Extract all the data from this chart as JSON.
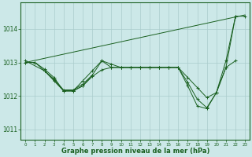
{
  "title": "Graphe pression niveau de la mer (hPa)",
  "background_color": "#cce8e8",
  "grid_color": "#aacccc",
  "line_color": "#1a6020",
  "xlim": [
    -0.5,
    23.5
  ],
  "ylim": [
    1010.7,
    1014.8
  ],
  "yticks": [
    1011,
    1012,
    1013,
    1014
  ],
  "xticks": [
    0,
    1,
    2,
    3,
    4,
    5,
    6,
    7,
    8,
    9,
    10,
    11,
    12,
    13,
    14,
    15,
    16,
    17,
    18,
    19,
    20,
    21,
    22,
    23
  ],
  "series1_x": [
    0,
    1,
    2,
    3,
    4,
    5,
    6,
    7,
    8,
    9,
    10,
    11,
    12,
    13,
    14,
    15,
    16,
    17,
    18,
    19,
    20,
    21,
    22,
    23
  ],
  "series1_y": [
    1013.0,
    1013.0,
    1012.8,
    1012.55,
    1012.15,
    1012.15,
    1012.45,
    1012.75,
    1013.05,
    1012.95,
    1012.85,
    1012.85,
    1012.85,
    1012.85,
    1012.85,
    1012.85,
    1012.85,
    1012.55,
    1012.25,
    1011.95,
    1012.1,
    1013.05,
    1014.38,
    1014.38
  ],
  "series2_x": [
    0,
    1,
    2,
    3,
    4,
    5,
    6,
    7,
    8,
    9,
    10,
    11,
    12,
    13,
    14,
    15,
    16,
    17,
    18,
    19,
    20,
    21,
    22
  ],
  "series2_y": [
    1013.0,
    1013.0,
    1012.75,
    1012.5,
    1012.15,
    1012.15,
    1012.3,
    1012.58,
    1012.78,
    1012.85,
    1012.85,
    1012.85,
    1012.85,
    1012.85,
    1012.85,
    1012.85,
    1012.85,
    1012.4,
    1011.9,
    1011.65,
    1012.1,
    1012.85,
    1014.38
  ],
  "series3_x": [
    0,
    2,
    3,
    4,
    5,
    6,
    7,
    8,
    9,
    10,
    11,
    12,
    13,
    14,
    15,
    16,
    17,
    18,
    19,
    20,
    21,
    22
  ],
  "series3_y": [
    1013.05,
    1012.75,
    1012.45,
    1012.15,
    1012.15,
    1012.3,
    1012.62,
    1013.05,
    1012.85,
    1012.85,
    1012.85,
    1012.85,
    1012.85,
    1012.85,
    1012.85,
    1012.85,
    1012.3,
    1011.7,
    1011.62,
    1012.1,
    1012.85,
    1013.05
  ],
  "series4_x": [
    2,
    3,
    4,
    5,
    6,
    7
  ],
  "series4_y": [
    1012.75,
    1012.48,
    1012.18,
    1012.18,
    1012.35,
    1012.62
  ],
  "series5_x": [
    0,
    23
  ],
  "series5_y": [
    1013.0,
    1014.42
  ]
}
